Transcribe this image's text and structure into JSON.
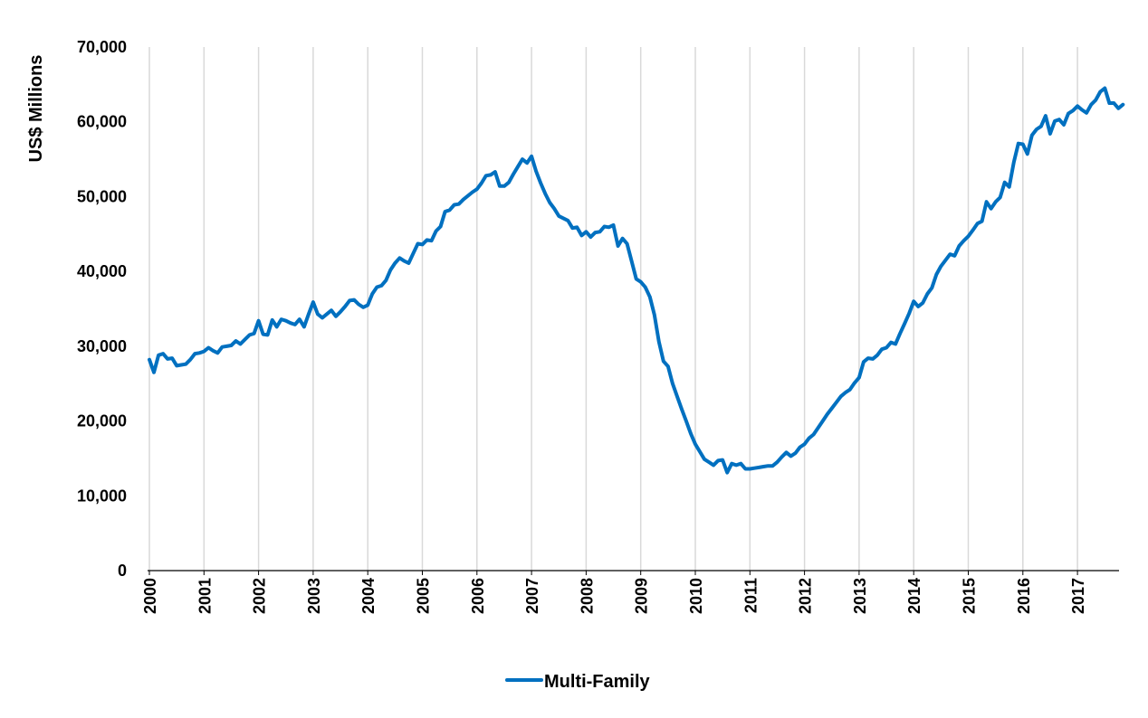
{
  "chart_data": {
    "type": "line",
    "title": "",
    "xlabel": "",
    "ylabel": "US$ Millions",
    "ylim": [
      0,
      70000
    ],
    "yticks": [
      "0",
      "10,000",
      "20,000",
      "30,000",
      "40,000",
      "50,000",
      "60,000",
      "70,000"
    ],
    "xticks": [
      "2000",
      "2001",
      "2002",
      "2003",
      "2004",
      "2005",
      "2006",
      "2007",
      "2008",
      "2009",
      "2010",
      "2011",
      "2012",
      "2013",
      "2014",
      "2015",
      "2016",
      "2017"
    ],
    "x_start": "2000-01",
    "x_end": "2017-09",
    "grid": "vertical gridlines at each year",
    "legend_position": "bottom-center",
    "colors": {
      "line": "#0070C0",
      "grid": "#D9D9D9",
      "axis": "#000000"
    },
    "series": [
      {
        "name": "Multi-Family",
        "values": [
          28200,
          26500,
          28800,
          29000,
          28300,
          28400,
          27400,
          27500,
          27600,
          28200,
          29000,
          29100,
          29300,
          29800,
          29400,
          29100,
          29900,
          30000,
          30100,
          30700,
          30300,
          30900,
          31500,
          31700,
          33400,
          31600,
          31500,
          33500,
          32600,
          33600,
          33400,
          33100,
          32900,
          33600,
          32600,
          34300,
          35900,
          34300,
          33800,
          34300,
          34800,
          34000,
          34600,
          35300,
          36100,
          36200,
          35600,
          35200,
          35500,
          37000,
          37900,
          38100,
          38800,
          40200,
          41100,
          41800,
          41400,
          41100,
          42400,
          43700,
          43600,
          44200,
          44100,
          45400,
          46000,
          48000,
          48200,
          48900,
          49000,
          49600,
          50100,
          50600,
          51000,
          51800,
          52800,
          52900,
          53300,
          51400,
          51400,
          51900,
          53000,
          54000,
          55000,
          54500,
          55400,
          53400,
          51800,
          50400,
          49200,
          48400,
          47400,
          47100,
          46800,
          45800,
          45900,
          44800,
          45300,
          44600,
          45200,
          45300,
          46000,
          45900,
          46200,
          43400,
          44400,
          43700,
          41400,
          39000,
          38600,
          37900,
          36600,
          34200,
          30600,
          28000,
          27300,
          25000,
          23300,
          21600,
          20000,
          18300,
          16900,
          15900,
          14900,
          14500,
          14100,
          14700,
          14800,
          13100,
          14300,
          14100,
          14300,
          13600,
          13600,
          13700,
          13800,
          13900,
          14000,
          14000,
          14500,
          15200,
          15800,
          15300,
          15700,
          16500,
          16900,
          17700,
          18200,
          19100,
          20000,
          20900,
          21700,
          22500,
          23300,
          23800,
          24200,
          25100,
          25800,
          27900,
          28400,
          28300,
          28800,
          29600,
          29800,
          30500,
          30300,
          31700,
          33000,
          34400,
          36000,
          35300,
          35800,
          37000,
          37800,
          39600,
          40700,
          41500,
          42300,
          42100,
          43400,
          44100,
          44700,
          45500,
          46400,
          46700,
          49300,
          48400,
          49300,
          49900,
          51900,
          51300,
          54600,
          57100,
          57000,
          55700,
          58200,
          59000,
          59400,
          60800,
          58400,
          60100,
          60300,
          59600,
          61100,
          61500,
          62100,
          61600,
          61200,
          62300,
          62900,
          64000,
          64500,
          62500,
          62500,
          61800,
          62300
        ]
      }
    ]
  }
}
